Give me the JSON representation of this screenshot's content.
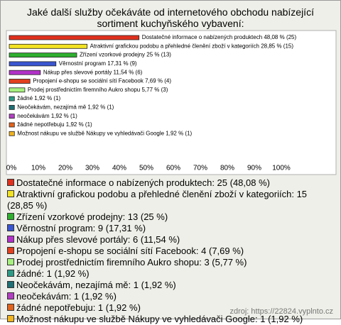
{
  "chart_data": {
    "type": "bar",
    "title": "Jaké další služby očekáváte od internetového obchodu nabízející sortiment kuchyňského vybavení:",
    "values": [
      48.08,
      28.85,
      25,
      17.31,
      11.54,
      7.69,
      5.77,
      1.92,
      1.92,
      1.92,
      1.92,
      1.92
    ],
    "value_labels": [
      "Dostatečné informace o nabízených produktech 48,08 % (25)",
      "Atraktivní grafickou podobu a přehledné členění zboží v kategoriích 28,85 % (15)",
      "Zřízení vzorkové prodejny 25 % (13)",
      "Věrnostní program 17,31 % (9)",
      "Nákup přes slevové portály 11,54 % (6)",
      "Propojení e-shopu se sociální sítí Facebook 7,69 % (4)",
      "Prodej prostřednictím firemního Aukro shopu 5,77 % (3)",
      "žádné 1,92 % (1)",
      "Neočekávám, nezajímá mě 1,92 % (1)",
      "neočekávám 1,92 % (1)",
      "žádné nepotřebuju 1,92 % (1)",
      "Možnost nákupu ve službě Nákupy ve vyhledávači Google 1,92 % (1)"
    ],
    "legend": [
      "Dostatečné informace o nabízených produktech: 25 (48,08 %)",
      "Atraktivní grafickou podobu a přehledné členění zboží v kategoriích: 15 (28,85 %)",
      "Zřízení vzorkové prodejny: 13 (25 %)",
      "Věrnostní program: 9 (17,31 %)",
      "Nákup přes slevové portály: 6 (11,54 %)",
      "Propojení e-shopu se sociální sítí Facebook: 4 (7,69 %)",
      "Prodej prostřednictím firemního Aukro shopu: 3 (5,77 %)",
      "žádné: 1 (1,92 %)",
      "Neočekávám, nezajímá mě: 1 (1,92 %)",
      "neočekávám: 1 (1,92 %)",
      "žádné nepotřebuju: 1 (1,92 %)",
      "Možnost nákupu ve službě Nákupy ve vyhledávači Google: 1 (1,92 %)"
    ],
    "colors": [
      "#e0301e",
      "#f2e224",
      "#2fae2f",
      "#3a55d0",
      "#b232c8",
      "#e2401e",
      "#a8f080",
      "#2e9a86",
      "#1f6f74",
      "#b040c0",
      "#e0641e",
      "#f0b422"
    ],
    "xlim": [
      0,
      100
    ],
    "xticks": [
      {
        "value": 0,
        "label": "0%"
      },
      {
        "value": 10,
        "label": "10%"
      },
      {
        "value": 20,
        "label": "20%"
      },
      {
        "value": 30,
        "label": "30%"
      },
      {
        "value": 40,
        "label": "40%"
      },
      {
        "value": 50,
        "label": "50%"
      },
      {
        "value": 60,
        "label": "60%"
      },
      {
        "value": 70,
        "label": "70%"
      },
      {
        "value": 80,
        "label": "80%"
      },
      {
        "value": 90,
        "label": "90%"
      },
      {
        "value": 100,
        "label": "100%"
      }
    ],
    "source": "zdroj: https://22824.vyplnto.cz"
  }
}
